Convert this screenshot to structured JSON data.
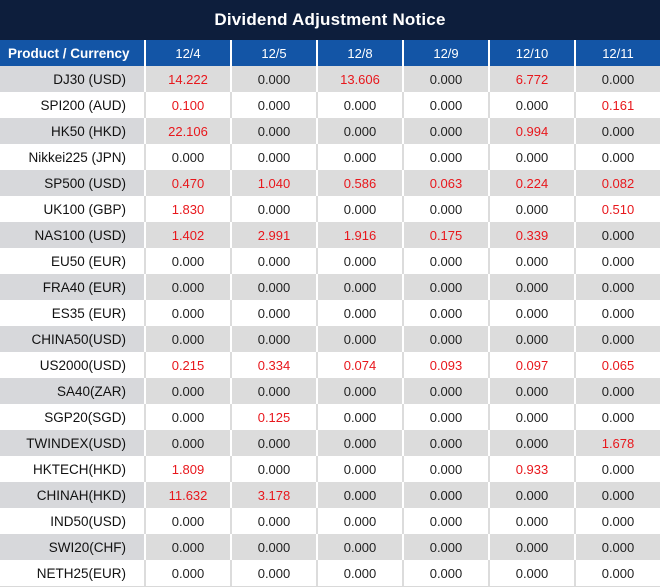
{
  "title": "Dividend Adjustment Notice",
  "colors": {
    "title_bg": "#0d1e3c",
    "header_bg": "#1355a6",
    "header_text": "#ffffff",
    "row_alt_bg": "#dcdcdc",
    "row_alt_label_bg": "#d7d8db",
    "row_bg": "#ffffff",
    "value_nonzero": "#e8171c",
    "value_zero": "#1f1f1f"
  },
  "chart_data": {
    "type": "table",
    "title": "Dividend Adjustment Notice",
    "columns": [
      "Product / Currency",
      "12/4",
      "12/5",
      "12/8",
      "12/9",
      "12/10",
      "12/11"
    ],
    "rows": [
      {
        "product": "DJ30 (USD)",
        "values": [
          "14.222",
          "0.000",
          "13.606",
          "0.000",
          "6.772",
          "0.000"
        ]
      },
      {
        "product": "SPI200 (AUD)",
        "values": [
          "0.100",
          "0.000",
          "0.000",
          "0.000",
          "0.000",
          "0.161"
        ]
      },
      {
        "product": "HK50 (HKD)",
        "values": [
          "22.106",
          "0.000",
          "0.000",
          "0.000",
          "0.994",
          "0.000"
        ]
      },
      {
        "product": "Nikkei225 (JPN)",
        "values": [
          "0.000",
          "0.000",
          "0.000",
          "0.000",
          "0.000",
          "0.000"
        ]
      },
      {
        "product": "SP500 (USD)",
        "values": [
          "0.470",
          "1.040",
          "0.586",
          "0.063",
          "0.224",
          "0.082"
        ]
      },
      {
        "product": "UK100 (GBP)",
        "values": [
          "1.830",
          "0.000",
          "0.000",
          "0.000",
          "0.000",
          "0.510"
        ]
      },
      {
        "product": "NAS100 (USD)",
        "values": [
          "1.402",
          "2.991",
          "1.916",
          "0.175",
          "0.339",
          "0.000"
        ]
      },
      {
        "product": "EU50 (EUR)",
        "values": [
          "0.000",
          "0.000",
          "0.000",
          "0.000",
          "0.000",
          "0.000"
        ]
      },
      {
        "product": "FRA40 (EUR)",
        "values": [
          "0.000",
          "0.000",
          "0.000",
          "0.000",
          "0.000",
          "0.000"
        ]
      },
      {
        "product": "ES35 (EUR)",
        "values": [
          "0.000",
          "0.000",
          "0.000",
          "0.000",
          "0.000",
          "0.000"
        ]
      },
      {
        "product": "CHINA50(USD)",
        "values": [
          "0.000",
          "0.000",
          "0.000",
          "0.000",
          "0.000",
          "0.000"
        ]
      },
      {
        "product": "US2000(USD)",
        "values": [
          "0.215",
          "0.334",
          "0.074",
          "0.093",
          "0.097",
          "0.065"
        ]
      },
      {
        "product": "SA40(ZAR)",
        "values": [
          "0.000",
          "0.000",
          "0.000",
          "0.000",
          "0.000",
          "0.000"
        ]
      },
      {
        "product": "SGP20(SGD)",
        "values": [
          "0.000",
          "0.125",
          "0.000",
          "0.000",
          "0.000",
          "0.000"
        ]
      },
      {
        "product": "TWINDEX(USD)",
        "values": [
          "0.000",
          "0.000",
          "0.000",
          "0.000",
          "0.000",
          "1.678"
        ]
      },
      {
        "product": "HKTECH(HKD)",
        "values": [
          "1.809",
          "0.000",
          "0.000",
          "0.000",
          "0.933",
          "0.000"
        ]
      },
      {
        "product": "CHINAH(HKD)",
        "values": [
          "11.632",
          "3.178",
          "0.000",
          "0.000",
          "0.000",
          "0.000"
        ]
      },
      {
        "product": "IND50(USD)",
        "values": [
          "0.000",
          "0.000",
          "0.000",
          "0.000",
          "0.000",
          "0.000"
        ]
      },
      {
        "product": "SWI20(CHF)",
        "values": [
          "0.000",
          "0.000",
          "0.000",
          "0.000",
          "0.000",
          "0.000"
        ]
      },
      {
        "product": "NETH25(EUR)",
        "values": [
          "0.000",
          "0.000",
          "0.000",
          "0.000",
          "0.000",
          "0.000"
        ]
      }
    ]
  }
}
